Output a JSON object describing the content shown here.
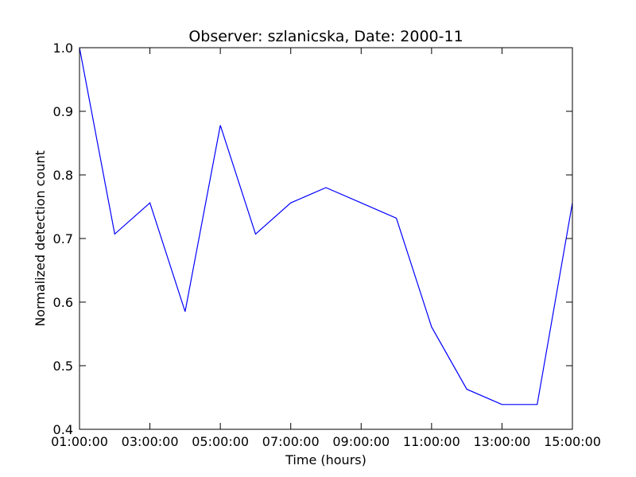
{
  "chart_data": {
    "type": "line",
    "title": "Observer: szlanicska, Date: 2000-11",
    "xlabel": "Time (hours)",
    "ylabel": "Normalized detection count",
    "x": [
      "01:00:00",
      "02:00:00",
      "03:00:00",
      "04:00:00",
      "05:00:00",
      "06:00:00",
      "07:00:00",
      "08:00:00",
      "09:00:00",
      "10:00:00",
      "11:00:00",
      "12:00:00",
      "13:00:00",
      "14:00:00",
      "15:00:00"
    ],
    "series": [
      {
        "color": "#0000ff",
        "values": [
          1.0,
          0.707,
          0.756,
          0.585,
          0.878,
          0.707,
          0.756,
          0.78,
          0.756,
          0.732,
          0.561,
          0.463,
          0.439,
          0.439,
          0.756
        ]
      }
    ],
    "xticks": [
      "01:00:00",
      "03:00:00",
      "05:00:00",
      "07:00:00",
      "09:00:00",
      "11:00:00",
      "13:00:00",
      "15:00:00"
    ],
    "yticks": [
      "0.4",
      "0.5",
      "0.6",
      "0.7",
      "0.8",
      "0.9",
      "1.0"
    ],
    "xlim": [
      "01:00:00",
      "15:00:00"
    ],
    "ylim": [
      0.4,
      1.0
    ],
    "grid": false
  }
}
